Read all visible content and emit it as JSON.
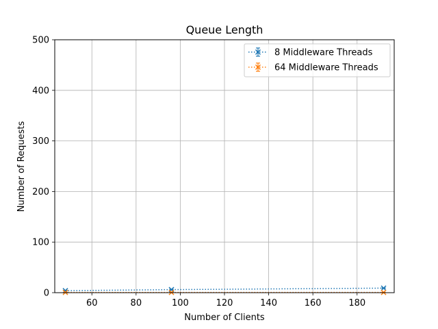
{
  "chart_data": {
    "type": "line",
    "title": "Queue Length",
    "xlabel": "Number of Clients",
    "ylabel": "Number of Requests",
    "xlim": [
      43.2,
      196.8
    ],
    "ylim": [
      0,
      500
    ],
    "xticks": [
      60,
      80,
      100,
      120,
      140,
      160,
      180
    ],
    "yticks": [
      0,
      100,
      200,
      300,
      400,
      500
    ],
    "grid": true,
    "legend_position": "top-right",
    "series": [
      {
        "name": "8 Middleware Threads",
        "color": "#1f77b4",
        "marker": "x",
        "linestyle": "dotted",
        "x": [
          48,
          96,
          192
        ],
        "y": [
          4,
          6,
          9
        ],
        "yerr": [
          0.5,
          0.5,
          0.5
        ]
      },
      {
        "name": "64 Middleware Threads",
        "color": "#ff7f0e",
        "marker": "x",
        "linestyle": "dotted",
        "x": [
          48,
          96,
          192
        ],
        "y": [
          0.5,
          0.5,
          0.5
        ],
        "yerr": [
          0.3,
          0.3,
          0.3
        ]
      }
    ]
  }
}
